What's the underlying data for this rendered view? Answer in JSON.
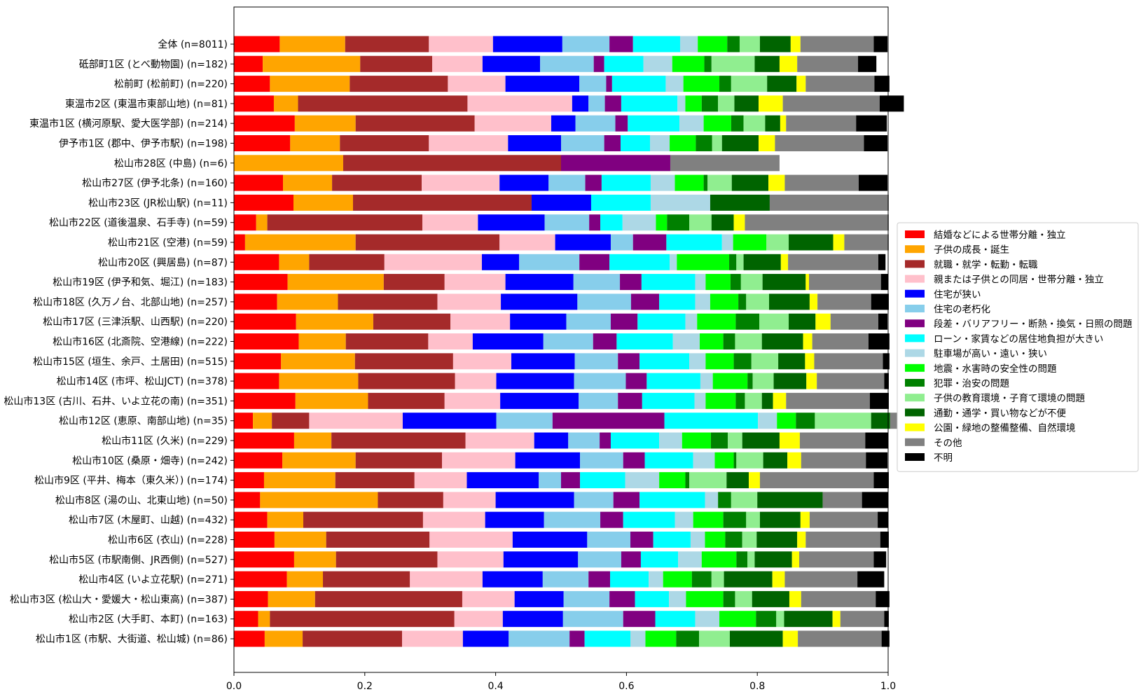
{
  "chart_data": {
    "type": "bar",
    "orientation": "horizontal",
    "stacked": true,
    "title": "",
    "xlabel": "",
    "ylabel": "",
    "xlim": [
      0,
      1.0
    ],
    "xticks": [
      "0.0",
      "0.2",
      "0.4",
      "0.6",
      "0.8",
      "1.0"
    ],
    "grid": false,
    "legend_position": "right",
    "categories": [
      "全体 (n=8011)",
      "砥部町1区 (とべ動物園) (n=182)",
      "松前町 (松前町) (n=220)",
      "東温市2区 (東温市東部山地) (n=81)",
      "東温市1区 (横河原駅、愛大医学部) (n=214)",
      "伊予市1区 (郡中、伊予市駅) (n=198)",
      "松山市28区 (中島) (n=6)",
      "松山市27区 (伊予北条) (n=160)",
      "松山市23区 (JR松山駅) (n=11)",
      "松山市22区 (道後温泉、石手寺) (n=59)",
      "松山市21区 (空港) (n=59)",
      "松山市20区 (興居島) (n=87)",
      "松山市19区 (伊予和気、堀江) (n=183)",
      "松山市18区 (久万ノ台、北部山地) (n=257)",
      "松山市17区 (三津浜駅、山西駅) (n=220)",
      "松山市16区 (北斎院、空港線) (n=222)",
      "松山市15区 (垣生、余戸、土居田) (n=515)",
      "松山市14区 (市坪、松山JCT) (n=378)",
      "松山市13区 (古川、石井、いよ立花の南) (n=351)",
      "松山市12区 (恵原、南部山地) (n=35)",
      "松山市11区 (久米) (n=229)",
      "松山市10区 (桑原・畑寺) (n=242)",
      "松山市9区 (平井、梅本（東久米）) (n=174)",
      "松山市8区 (湯の山、北東山地) (n=50)",
      "松山市7区 (木屋町、山越) (n=432)",
      "松山市6区 (衣山) (n=228)",
      "松山市5区 (市駅南側、JR西側) (n=527)",
      "松山市4区 (いよ立花駅) (n=271)",
      "松山市3区 (松山大・愛媛大・松山東高) (n=387)",
      "松山市2区 (大手町、本町) (n=163)",
      "松山市1区 (市駅、大街道、松山城) (n=86)"
    ],
    "series": [
      {
        "name": "結婚などによる世帯分離・独立",
        "color": "#ff0000",
        "values": [
          0.07,
          0.044,
          0.055,
          0.061,
          0.093,
          0.086,
          0.0,
          0.075,
          0.091,
          0.034,
          0.017,
          0.069,
          0.082,
          0.066,
          0.095,
          0.099,
          0.072,
          0.069,
          0.094,
          0.029,
          0.092,
          0.074,
          0.046,
          0.04,
          0.051,
          0.062,
          0.092,
          0.081,
          0.052,
          0.037,
          0.047
        ]
      },
      {
        "name": "子供の成長・誕生",
        "color": "#ffa500",
        "values": [
          0.1,
          0.149,
          0.122,
          0.037,
          0.093,
          0.076,
          0.167,
          0.075,
          0.091,
          0.017,
          0.169,
          0.046,
          0.147,
          0.093,
          0.118,
          0.072,
          0.113,
          0.121,
          0.111,
          0.029,
          0.057,
          0.112,
          0.109,
          0.18,
          0.055,
          0.079,
          0.064,
          0.055,
          0.072,
          0.018,
          0.058
        ]
      },
      {
        "name": "就職・就学・転勤・転職",
        "color": "#a52a2a",
        "values": [
          0.128,
          0.11,
          0.15,
          0.259,
          0.182,
          0.136,
          0.333,
          0.137,
          0.273,
          0.237,
          0.22,
          0.115,
          0.093,
          0.152,
          0.118,
          0.126,
          0.15,
          0.148,
          0.117,
          0.057,
          0.205,
          0.132,
          0.121,
          0.1,
          0.183,
          0.158,
          0.155,
          0.133,
          0.225,
          0.282,
          0.152
        ]
      },
      {
        "name": "親または子供との同居・世帯分離・独立",
        "color": "#ffc0cb",
        "values": [
          0.098,
          0.077,
          0.088,
          0.16,
          0.117,
          0.121,
          0.0,
          0.119,
          0.0,
          0.085,
          0.085,
          0.149,
          0.093,
          0.097,
          0.091,
          0.068,
          0.089,
          0.063,
          0.085,
          0.143,
          0.105,
          0.112,
          0.08,
          0.08,
          0.095,
          0.127,
          0.101,
          0.111,
          0.08,
          0.074,
          0.093
        ]
      },
      {
        "name": "住宅が狭い",
        "color": "#0000ff",
        "values": [
          0.106,
          0.088,
          0.113,
          0.025,
          0.037,
          0.081,
          0.0,
          0.075,
          0.091,
          0.102,
          0.085,
          0.057,
          0.104,
          0.117,
          0.086,
          0.108,
          0.097,
          0.119,
          0.12,
          0.143,
          0.052,
          0.099,
          0.11,
          0.12,
          0.09,
          0.114,
          0.114,
          0.092,
          0.075,
          0.092,
          0.07
        ]
      },
      {
        "name": "住宅の老朽化",
        "color": "#87ceeb",
        "values": [
          0.072,
          0.082,
          0.041,
          0.025,
          0.061,
          0.066,
          0.0,
          0.056,
          0.0,
          0.068,
          0.034,
          0.092,
          0.071,
          0.082,
          0.068,
          0.076,
          0.066,
          0.079,
          0.06,
          0.086,
          0.048,
          0.066,
          0.034,
          0.06,
          0.086,
          0.066,
          0.066,
          0.07,
          0.07,
          0.092,
          0.093
        ]
      },
      {
        "name": "段差・バリアフリー・断熱・換気・日照の問題",
        "color": "#800080",
        "values": [
          0.036,
          0.016,
          0.009,
          0.025,
          0.019,
          0.025,
          0.167,
          0.025,
          0.0,
          0.017,
          0.051,
          0.046,
          0.033,
          0.043,
          0.041,
          0.036,
          0.033,
          0.032,
          0.037,
          0.171,
          0.017,
          0.033,
          0.029,
          0.04,
          0.035,
          0.035,
          0.03,
          0.033,
          0.039,
          0.049,
          0.023
        ]
      },
      {
        "name": "ローン・家賃などの居住地負担が大きい",
        "color": "#00ffff",
        "values": [
          0.072,
          0.06,
          0.082,
          0.086,
          0.079,
          0.045,
          0.0,
          0.075,
          0.091,
          0.034,
          0.085,
          0.092,
          0.082,
          0.055,
          0.073,
          0.086,
          0.076,
          0.082,
          0.08,
          0.143,
          0.074,
          0.074,
          0.069,
          0.1,
          0.079,
          0.057,
          0.057,
          0.059,
          0.052,
          0.061,
          0.07
        ]
      },
      {
        "name": "駐車場が高い・遠い・狭い",
        "color": "#add8e6",
        "values": [
          0.027,
          0.044,
          0.027,
          0.012,
          0.037,
          0.03,
          0.0,
          0.037,
          0.091,
          0.051,
          0.017,
          0.011,
          0.016,
          0.023,
          0.018,
          0.041,
          0.025,
          0.019,
          0.017,
          0.029,
          0.035,
          0.033,
          0.052,
          0.02,
          0.028,
          0.022,
          0.036,
          0.022,
          0.026,
          0.037,
          0.023
        ]
      },
      {
        "name": "地震・水害時の安全性の問題",
        "color": "#00ff00",
        "values": [
          0.045,
          0.049,
          0.055,
          0.025,
          0.042,
          0.04,
          0.0,
          0.044,
          0.0,
          0.017,
          0.051,
          0.08,
          0.038,
          0.043,
          0.059,
          0.036,
          0.043,
          0.053,
          0.046,
          0.029,
          0.044,
          0.029,
          0.04,
          0.0,
          0.046,
          0.031,
          0.053,
          0.044,
          0.057,
          0.056,
          0.047
        ]
      },
      {
        "name": "犯罪・治安の問題",
        "color": "#008000",
        "values": [
          0.019,
          0.011,
          0.018,
          0.025,
          0.019,
          0.025,
          0.0,
          0.006,
          0.0,
          0.034,
          0.0,
          0.011,
          0.016,
          0.012,
          0.036,
          0.018,
          0.027,
          0.008,
          0.014,
          0.029,
          0.026,
          0.004,
          0.006,
          0.02,
          0.035,
          0.026,
          0.017,
          0.03,
          0.018,
          0.031,
          0.035
        ]
      },
      {
        "name": "子供の教育環境・子育て環境の問題",
        "color": "#90ee90",
        "values": [
          0.031,
          0.066,
          0.055,
          0.025,
          0.033,
          0.015,
          0.0,
          0.037,
          0.0,
          0.034,
          0.034,
          0.011,
          0.033,
          0.035,
          0.045,
          0.041,
          0.041,
          0.032,
          0.026,
          0.086,
          0.022,
          0.041,
          0.057,
          0.04,
          0.021,
          0.022,
          0.011,
          0.019,
          0.026,
          0.012,
          0.047
        ]
      },
      {
        "name": "通勤・通学・買い物などが不便",
        "color": "#006400",
        "values": [
          0.047,
          0.038,
          0.045,
          0.037,
          0.023,
          0.056,
          0.0,
          0.056,
          0.091,
          0.034,
          0.068,
          0.057,
          0.066,
          0.062,
          0.041,
          0.063,
          0.041,
          0.05,
          0.017,
          0.029,
          0.057,
          0.037,
          0.034,
          0.1,
          0.062,
          0.062,
          0.057,
          0.074,
          0.057,
          0.074,
          0.081
        ]
      },
      {
        "name": "公園・緑地の整備整備、自然環境",
        "color": "#ffff00",
        "values": [
          0.015,
          0.027,
          0.014,
          0.037,
          0.009,
          0.025,
          0.0,
          0.025,
          0.0,
          0.017,
          0.017,
          0.011,
          0.005,
          0.012,
          0.023,
          0.014,
          0.014,
          0.016,
          0.02,
          0.0,
          0.031,
          0.021,
          0.017,
          0.0,
          0.014,
          0.013,
          0.011,
          0.019,
          0.018,
          0.012,
          0.023
        ]
      },
      {
        "name": "その他",
        "color": "#808080",
        "values": [
          0.112,
          0.093,
          0.105,
          0.148,
          0.107,
          0.136,
          0.167,
          0.113,
          0.182,
          0.22,
          0.068,
          0.138,
          0.11,
          0.082,
          0.073,
          0.086,
          0.105,
          0.103,
          0.128,
          0.029,
          0.1,
          0.099,
          0.174,
          0.06,
          0.104,
          0.114,
          0.114,
          0.111,
          0.114,
          0.067,
          0.128
        ]
      },
      {
        "name": "不明",
        "color": "#000000",
        "values": [
          0.021,
          0.028,
          0.023,
          0.037,
          0.047,
          0.036,
          0.0,
          0.044,
          0.0,
          0.0,
          0.0,
          0.011,
          0.011,
          0.027,
          0.014,
          0.032,
          0.01,
          0.007,
          0.029,
          0.0,
          0.035,
          0.033,
          0.023,
          0.04,
          0.016,
          0.013,
          0.019,
          0.041,
          0.021,
          0.007,
          0.012
        ]
      }
    ]
  }
}
